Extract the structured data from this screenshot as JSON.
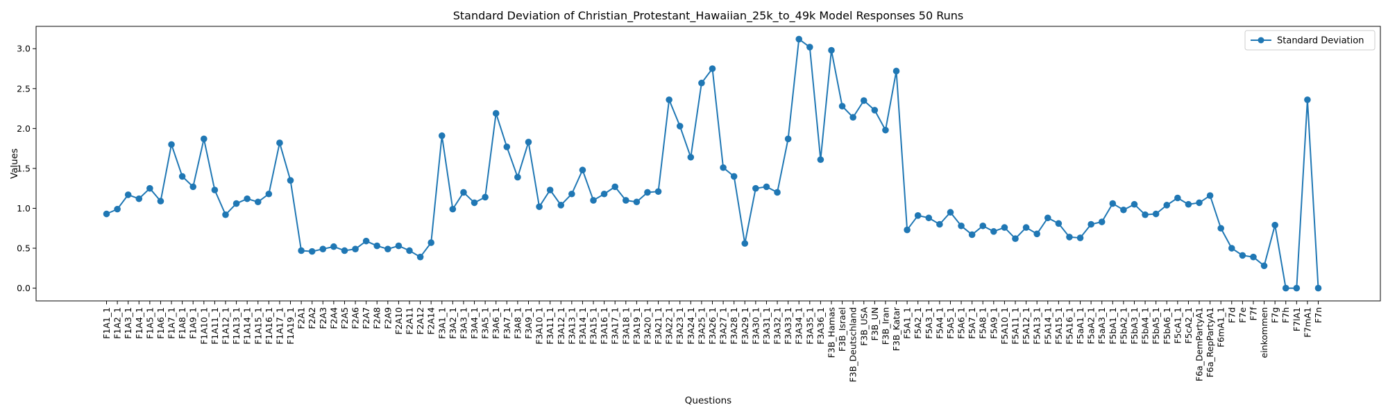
{
  "chart_data": {
    "type": "line",
    "title": "Standard Deviation of Christian_Protestant_Hawaiian_25k_to_49k Model Responses 50 Runs",
    "xlabel": "Questions",
    "ylabel": "Values",
    "ylim": [
      -0.16,
      3.28
    ],
    "yticks": [
      "0.0",
      "0.5",
      "1.0",
      "1.5",
      "2.0",
      "2.5",
      "3.0"
    ],
    "grid": false,
    "legend_position": "top-right",
    "line_color": "#1f77b4",
    "categories": [
      "F1A1_1",
      "F1A2_1",
      "F1A3_1",
      "F1A4_1",
      "F1A5_1",
      "F1A6_1",
      "F1A7_1",
      "F1A8_1",
      "F1A9_1",
      "F1A10_1",
      "F1A11_1",
      "F1A12_1",
      "F1A13_1",
      "F1A14_1",
      "F1A15_1",
      "F1A16_1",
      "F1A17_1",
      "F1A19_1",
      "F2A1",
      "F2A2",
      "F2A3",
      "F2A4",
      "F2A5",
      "F2A6",
      "F2A7",
      "F2A8",
      "F2A9",
      "F2A10",
      "F2A11",
      "F2A12",
      "F2A14",
      "F3A1_1",
      "F3A2_1",
      "F3A3_1",
      "F3A4_1",
      "F3A5_1",
      "F3A6_1",
      "F3A7_1",
      "F3A8_1",
      "F3A9_1",
      "F3A10_1",
      "F3A11_1",
      "F3A12_1",
      "F3A13_1",
      "F3A14_1",
      "F3A15_1",
      "F3A16_1",
      "F3A17_1",
      "F3A18_1",
      "F3A19_1",
      "F3A20_1",
      "F3A21_1",
      "F3A22_1",
      "F3A23_1",
      "F3A24_1",
      "F3A25_1",
      "F3A26_1",
      "F3A27_1",
      "F3A28_1",
      "F3A29_1",
      "F3A30_1",
      "F3A31_1",
      "F3A32_1",
      "F3A33_1",
      "F3A34_1",
      "F3A35_1",
      "F3A36_1",
      "F3B_Hamas",
      "F3B_Israel",
      "F3B_Deutschland",
      "F3B_USA",
      "F3B_UN",
      "F3B_Iran",
      "F3B_Katar",
      "F5A1_1",
      "F5A2_1",
      "F5A3_1",
      "F5A4_1",
      "F5A5_1",
      "F5A6_1",
      "F5A7_1",
      "F5A8_1",
      "F5A9_1",
      "F5A10_1",
      "F5A11_1",
      "F5A12_1",
      "F5A13_1",
      "F5A14_1",
      "F5A15_1",
      "F5A16_1",
      "F5aA1_1",
      "F5aA2_1",
      "F5aA3_1",
      "F5bA1_1",
      "F5bA2_1",
      "F5bA3_1",
      "F5bA4_1",
      "F5bA5_1",
      "F5bA6_1",
      "F5cA1_1",
      "F5cA2_1",
      "F6a_DemPartyA1",
      "F6a_RepPartyA1",
      "F6mA1_1",
      "F7d",
      "F7e",
      "F7f",
      "einkommen",
      "F7g",
      "F7h",
      "F7lA1",
      "F7mA1",
      "F7n"
    ],
    "series": [
      {
        "name": "Standard Deviation",
        "values": [
          0.93,
          0.99,
          1.17,
          1.12,
          1.25,
          1.09,
          1.8,
          1.4,
          1.27,
          1.87,
          1.23,
          0.92,
          1.06,
          1.12,
          1.08,
          1.18,
          1.82,
          1.35,
          0.47,
          0.46,
          0.49,
          0.52,
          0.47,
          0.49,
          0.59,
          0.53,
          0.49,
          0.53,
          0.47,
          0.39,
          0.57,
          1.91,
          0.99,
          1.2,
          1.07,
          1.14,
          2.19,
          1.77,
          1.39,
          1.83,
          1.02,
          1.23,
          1.04,
          1.18,
          1.48,
          1.1,
          1.18,
          1.27,
          1.1,
          1.08,
          1.2,
          1.21,
          2.36,
          2.03,
          1.64,
          2.57,
          2.75,
          1.51,
          1.4,
          0.56,
          1.25,
          1.27,
          1.2,
          1.87,
          3.12,
          3.02,
          1.61,
          2.98,
          2.28,
          2.14,
          2.35,
          2.23,
          1.98,
          2.72,
          0.73,
          0.91,
          0.88,
          0.8,
          0.95,
          0.78,
          0.67,
          0.78,
          0.71,
          0.76,
          0.62,
          0.76,
          0.68,
          0.88,
          0.81,
          0.64,
          0.63,
          0.8,
          0.83,
          1.06,
          0.98,
          1.05,
          0.92,
          0.93,
          1.04,
          1.13,
          1.05,
          1.07,
          1.16,
          0.75,
          0.5,
          0.41,
          0.39,
          0.28,
          0.79,
          0.0,
          0.0,
          2.36,
          0.0
        ]
      }
    ]
  }
}
